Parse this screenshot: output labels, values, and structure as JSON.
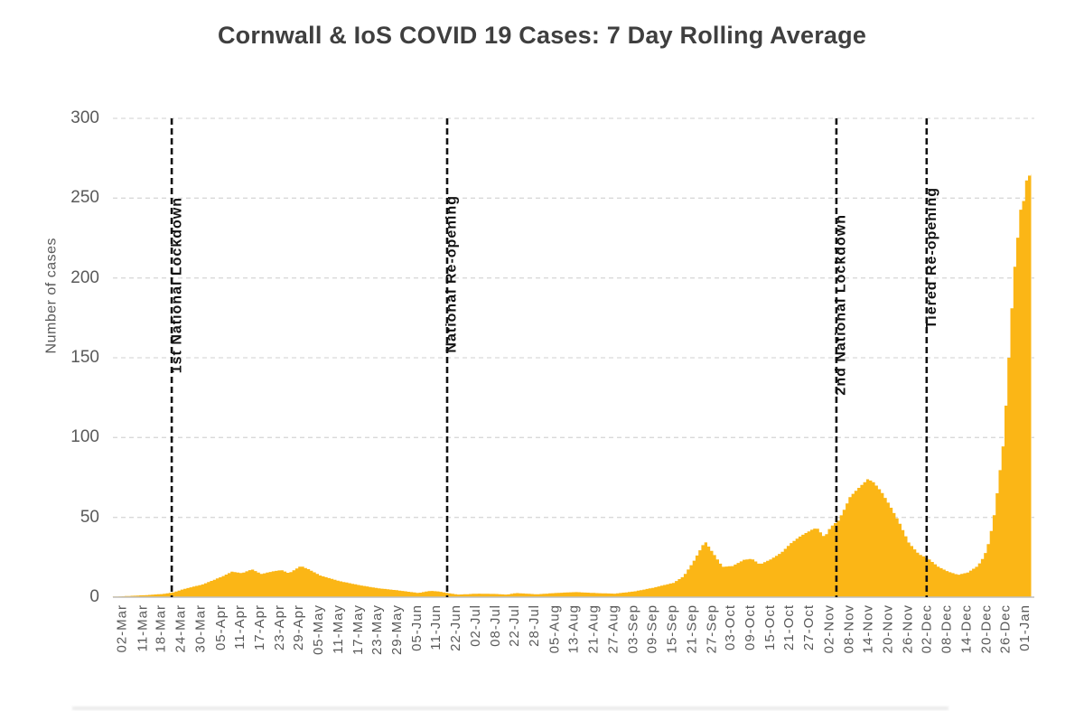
{
  "chart_data": {
    "type": "area",
    "title": "Cornwall & IoS COVID 19 Cases: 7 Day Rolling Average",
    "ylabel": "Number of cases",
    "xlabel": "",
    "ylim": [
      0,
      300
    ],
    "y_ticks": [
      0,
      50,
      100,
      150,
      200,
      250,
      300
    ],
    "grid": "horizontal-dashed",
    "legend": "none",
    "categories": [
      "02-Mar",
      "11-Mar",
      "18-Mar",
      "24-Mar",
      "30-Mar",
      "05-Apr",
      "11-Apr",
      "17-Apr",
      "23-Apr",
      "29-Apr",
      "05-May",
      "11-May",
      "17-May",
      "23-May",
      "29-May",
      "05-Jun",
      "11-Jun",
      "22-Jun",
      "02-Jul",
      "08-Jul",
      "22-Jul",
      "28-Jul",
      "05-Aug",
      "13-Aug",
      "21-Aug",
      "27-Aug",
      "03-Sep",
      "09-Sep",
      "15-Sep",
      "21-Sep",
      "27-Sep",
      "03-Oct",
      "09-Oct",
      "15-Oct",
      "21-Oct",
      "27-Oct",
      "02-Nov",
      "08-Nov",
      "14-Nov",
      "20-Nov",
      "26-Nov",
      "02-Dec",
      "08-Dec",
      "14-Dec",
      "20-Dec",
      "26-Dec",
      "01-Jan"
    ],
    "series": [
      {
        "name": "7 day rolling average of cases",
        "points_format": "[x_position_in_tick_units, cases]",
        "points": [
          [
            -0.51,
            0.4
          ],
          [
            0,
            0.6
          ],
          [
            1,
            1.2
          ],
          [
            2,
            2
          ],
          [
            2.5,
            3
          ],
          [
            3,
            5
          ],
          [
            4,
            8
          ],
          [
            5,
            13
          ],
          [
            5.5,
            16
          ],
          [
            6,
            15
          ],
          [
            6.5,
            17.5
          ],
          [
            7,
            14.5
          ],
          [
            7.5,
            16
          ],
          [
            8,
            17
          ],
          [
            8.4,
            15
          ],
          [
            9,
            19.5
          ],
          [
            9.4,
            17.5
          ],
          [
            10,
            13.5
          ],
          [
            11,
            10
          ],
          [
            12,
            7.5
          ],
          [
            13,
            5.5
          ],
          [
            14,
            4.2
          ],
          [
            15,
            2.6
          ],
          [
            15.6,
            4
          ],
          [
            16,
            3.6
          ],
          [
            16.5,
            2.6
          ],
          [
            17,
            1.6
          ],
          [
            18,
            2.2
          ],
          [
            19,
            2.0
          ],
          [
            19.5,
            1.6
          ],
          [
            20,
            2.6
          ],
          [
            21,
            1.8
          ],
          [
            22,
            2.6
          ],
          [
            23,
            3.2
          ],
          [
            24,
            2.6
          ],
          [
            25,
            2.2
          ],
          [
            26,
            3.6
          ],
          [
            27,
            6
          ],
          [
            28,
            9
          ],
          [
            28.5,
            13
          ],
          [
            29,
            22
          ],
          [
            29.6,
            35
          ],
          [
            30,
            28
          ],
          [
            30.5,
            19
          ],
          [
            31,
            19.5
          ],
          [
            31.6,
            23.5
          ],
          [
            32,
            24
          ],
          [
            32.4,
            20.5
          ],
          [
            33,
            24
          ],
          [
            33.5,
            28
          ],
          [
            34,
            34
          ],
          [
            34.5,
            38.5
          ],
          [
            35,
            42
          ],
          [
            35.3,
            43.5
          ],
          [
            35.7,
            37.5
          ],
          [
            36,
            44
          ],
          [
            36.4,
            48
          ],
          [
            36.7,
            55
          ],
          [
            37,
            63
          ],
          [
            37.4,
            68
          ],
          [
            37.9,
            74
          ],
          [
            38.2,
            72
          ],
          [
            38.6,
            66
          ],
          [
            39,
            58
          ],
          [
            39.5,
            47
          ],
          [
            40,
            34
          ],
          [
            40.5,
            27
          ],
          [
            41,
            24
          ],
          [
            41.5,
            19
          ],
          [
            42,
            16
          ],
          [
            42.5,
            14
          ],
          [
            43,
            15.5
          ],
          [
            43.5,
            19.5
          ],
          [
            43.8,
            25
          ],
          [
            44,
            31
          ],
          [
            44.2,
            42
          ],
          [
            44.35,
            52
          ],
          [
            44.5,
            66
          ],
          [
            44.58,
            82
          ],
          [
            44.68,
            78
          ],
          [
            44.8,
            96
          ],
          [
            44.9,
            110
          ],
          [
            45,
            135
          ],
          [
            45.15,
            160
          ],
          [
            45.3,
            195
          ],
          [
            45.45,
            215
          ],
          [
            45.6,
            232
          ],
          [
            45.75,
            250
          ],
          [
            45.85,
            248
          ],
          [
            46,
            262
          ],
          [
            46.2,
            265
          ],
          [
            46.3,
            265
          ]
        ]
      }
    ],
    "annotations": [
      {
        "label": "1st National Lockdown",
        "at_tick": 2.49,
        "label_top_y": 218
      },
      {
        "label": "National Re-opening",
        "at_tick": 16.53,
        "label_top_y": 216
      },
      {
        "label": "2nd National Lockdown",
        "at_tick": 36.37,
        "label_top_y": 237
      },
      {
        "label": "Tiered Re-opening",
        "at_tick": 40.97,
        "label_top_y": 207
      }
    ],
    "colors": {
      "area": "#FBB616",
      "gridline": "#D9D9D9",
      "axis_line": "#BFBFBF",
      "event_line": "#111111",
      "tick_text": "#595959",
      "title_text": "#3F3F3F",
      "annotation_text": "#111111"
    }
  }
}
